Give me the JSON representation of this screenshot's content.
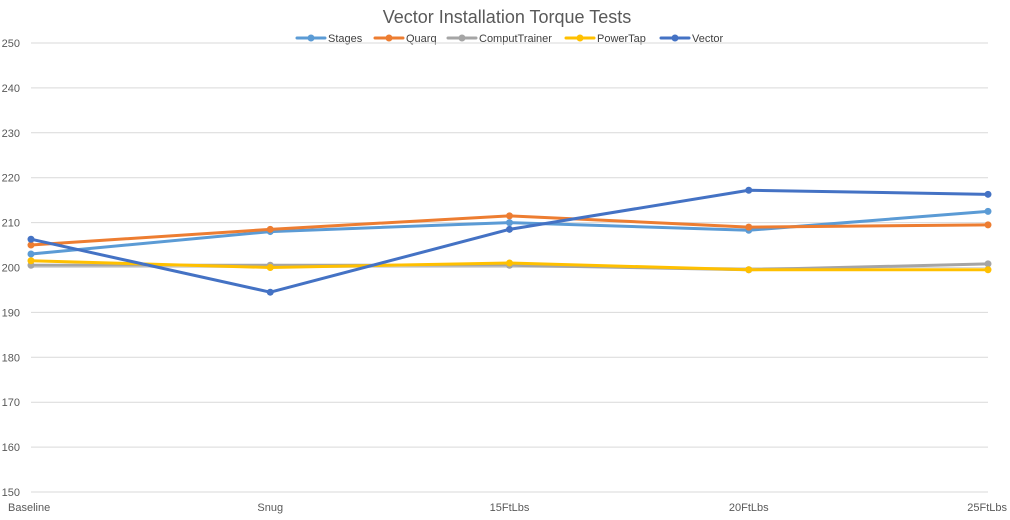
{
  "chart_data": {
    "type": "line",
    "title": "Vector Installation Torque Tests",
    "xlabel": "",
    "ylabel": "",
    "categories": [
      "Baseline",
      "Snug",
      "15FtLbs",
      "20FtLbs",
      "25FtLbs"
    ],
    "ylim": [
      150,
      250
    ],
    "yticks": [
      150,
      160,
      170,
      180,
      190,
      200,
      210,
      220,
      230,
      240,
      250
    ],
    "grid": true,
    "legend_position": "top",
    "series": [
      {
        "name": "Stages",
        "color": "#5B9BD5",
        "values": [
          203,
          208,
          210,
          208.3,
          212.5
        ]
      },
      {
        "name": "Quarq",
        "color": "#ED7D31",
        "values": [
          205,
          208.5,
          211.5,
          209,
          209.5
        ]
      },
      {
        "name": "ComputTrainer",
        "color": "#A5A5A5",
        "values": [
          200.5,
          200.5,
          200.5,
          199.5,
          200.8
        ]
      },
      {
        "name": "PowerTap",
        "color": "#FFC000",
        "values": [
          201.5,
          200,
          201,
          199.5,
          199.5
        ]
      },
      {
        "name": "Vector",
        "color": "#4472C4",
        "values": [
          206.3,
          194.5,
          208.5,
          217.2,
          216.3
        ]
      }
    ]
  }
}
